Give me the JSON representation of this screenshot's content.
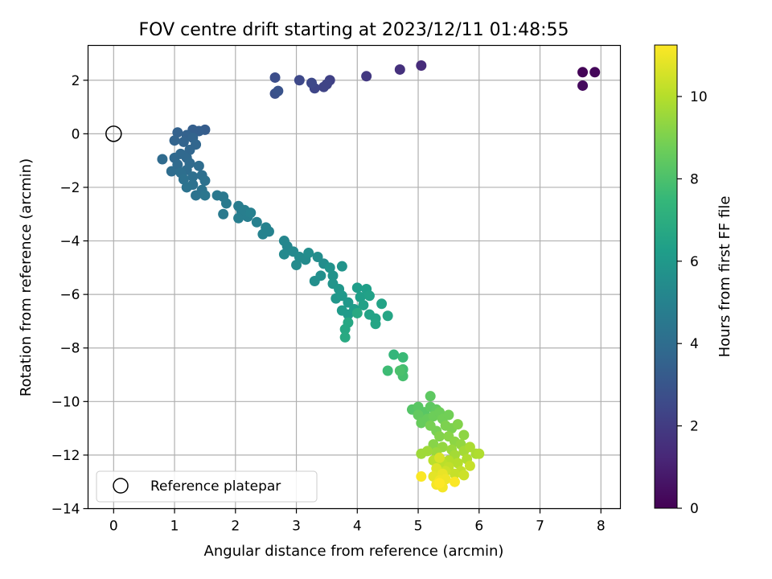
{
  "chart_data": {
    "type": "scatter",
    "title": "FOV centre drift starting at 2023/12/11 01:48:55",
    "xlabel": "Angular distance from reference (arcmin)",
    "ylabel": "Rotation from reference (arcmin)",
    "xlim": [
      -0.42,
      8.32
    ],
    "ylim": [
      -14.0,
      3.3
    ],
    "xticks": [
      0,
      1,
      2,
      3,
      4,
      5,
      6,
      7,
      8
    ],
    "yticks": [
      -14,
      -12,
      -10,
      -8,
      -6,
      -4,
      -2,
      0,
      2
    ],
    "grid": true,
    "colormap": "viridis",
    "colorbar": {
      "label": "Hours from first FF file",
      "range": [
        0,
        11.25
      ],
      "ticks": [
        0,
        2,
        4,
        6,
        8,
        10
      ]
    },
    "legend": {
      "location": "lower-left",
      "entries": [
        "Reference platepar"
      ]
    },
    "reference_point": {
      "x": 0,
      "y": 0
    },
    "points": [
      {
        "x": 7.7,
        "y": 2.3,
        "h": 0.1
      },
      {
        "x": 7.9,
        "y": 2.3,
        "h": 0.2
      },
      {
        "x": 7.7,
        "y": 1.8,
        "h": 0.3
      },
      {
        "x": 5.05,
        "y": 2.55,
        "h": 1.4
      },
      {
        "x": 4.7,
        "y": 2.4,
        "h": 1.6
      },
      {
        "x": 4.15,
        "y": 2.15,
        "h": 1.9
      },
      {
        "x": 3.55,
        "y": 2.0,
        "h": 2.2
      },
      {
        "x": 3.5,
        "y": 1.85,
        "h": 2.3
      },
      {
        "x": 3.45,
        "y": 1.75,
        "h": 2.3
      },
      {
        "x": 3.3,
        "y": 1.7,
        "h": 2.4
      },
      {
        "x": 3.25,
        "y": 1.9,
        "h": 2.5
      },
      {
        "x": 3.05,
        "y": 2.0,
        "h": 2.5
      },
      {
        "x": 2.65,
        "y": 2.1,
        "h": 2.7
      },
      {
        "x": 2.65,
        "y": 1.5,
        "h": 2.8
      },
      {
        "x": 2.7,
        "y": 1.6,
        "h": 2.9
      },
      {
        "x": 1.5,
        "y": 0.15,
        "h": 3.3
      },
      {
        "x": 1.4,
        "y": 0.1,
        "h": 3.4
      },
      {
        "x": 1.3,
        "y": 0.15,
        "h": 3.4
      },
      {
        "x": 1.2,
        "y": -0.05,
        "h": 3.5
      },
      {
        "x": 1.05,
        "y": 0.05,
        "h": 3.5
      },
      {
        "x": 1.0,
        "y": -0.25,
        "h": 3.6
      },
      {
        "x": 1.15,
        "y": -0.3,
        "h": 3.6
      },
      {
        "x": 1.3,
        "y": -0.15,
        "h": 3.6
      },
      {
        "x": 1.35,
        "y": -0.4,
        "h": 3.7
      },
      {
        "x": 1.25,
        "y": -0.6,
        "h": 3.7
      },
      {
        "x": 1.1,
        "y": -0.75,
        "h": 3.8
      },
      {
        "x": 1.2,
        "y": -0.9,
        "h": 3.8
      },
      {
        "x": 1.0,
        "y": -0.9,
        "h": 3.8
      },
      {
        "x": 0.8,
        "y": -0.95,
        "h": 3.9
      },
      {
        "x": 1.05,
        "y": -1.15,
        "h": 3.9
      },
      {
        "x": 1.25,
        "y": -1.1,
        "h": 3.9
      },
      {
        "x": 1.4,
        "y": -1.2,
        "h": 4.0
      },
      {
        "x": 1.2,
        "y": -1.35,
        "h": 4.0
      },
      {
        "x": 0.95,
        "y": -1.4,
        "h": 4.0
      },
      {
        "x": 1.1,
        "y": -1.45,
        "h": 4.1
      },
      {
        "x": 1.3,
        "y": -1.6,
        "h": 4.1
      },
      {
        "x": 1.45,
        "y": -1.55,
        "h": 4.1
      },
      {
        "x": 1.15,
        "y": -1.7,
        "h": 4.2
      },
      {
        "x": 1.3,
        "y": -1.9,
        "h": 4.2
      },
      {
        "x": 1.5,
        "y": -1.75,
        "h": 4.2
      },
      {
        "x": 1.2,
        "y": -2.0,
        "h": 4.3
      },
      {
        "x": 1.35,
        "y": -2.3,
        "h": 4.3
      },
      {
        "x": 1.45,
        "y": -2.1,
        "h": 4.3
      },
      {
        "x": 1.5,
        "y": -2.3,
        "h": 4.4
      },
      {
        "x": 1.7,
        "y": -2.3,
        "h": 4.5
      },
      {
        "x": 1.8,
        "y": -2.35,
        "h": 4.5
      },
      {
        "x": 1.85,
        "y": -2.6,
        "h": 4.6
      },
      {
        "x": 1.8,
        "y": -3.0,
        "h": 4.6
      },
      {
        "x": 2.05,
        "y": -2.7,
        "h": 4.7
      },
      {
        "x": 2.1,
        "y": -2.9,
        "h": 4.7
      },
      {
        "x": 2.05,
        "y": -3.15,
        "h": 4.8
      },
      {
        "x": 2.2,
        "y": -3.1,
        "h": 4.8
      },
      {
        "x": 2.15,
        "y": -2.85,
        "h": 4.8
      },
      {
        "x": 2.25,
        "y": -2.95,
        "h": 4.9
      },
      {
        "x": 2.35,
        "y": -3.3,
        "h": 4.9
      },
      {
        "x": 2.5,
        "y": -3.5,
        "h": 5.0
      },
      {
        "x": 2.45,
        "y": -3.75,
        "h": 5.0
      },
      {
        "x": 2.55,
        "y": -3.65,
        "h": 5.0
      },
      {
        "x": 2.8,
        "y": -4.0,
        "h": 5.2
      },
      {
        "x": 2.85,
        "y": -4.2,
        "h": 5.2
      },
      {
        "x": 2.8,
        "y": -4.5,
        "h": 5.3
      },
      {
        "x": 2.95,
        "y": -4.4,
        "h": 5.3
      },
      {
        "x": 3.05,
        "y": -4.6,
        "h": 5.4
      },
      {
        "x": 3.0,
        "y": -4.9,
        "h": 5.4
      },
      {
        "x": 3.15,
        "y": -4.7,
        "h": 5.4
      },
      {
        "x": 3.2,
        "y": -4.45,
        "h": 5.5
      },
      {
        "x": 3.35,
        "y": -4.6,
        "h": 5.5
      },
      {
        "x": 3.45,
        "y": -4.85,
        "h": 5.5
      },
      {
        "x": 3.3,
        "y": -5.5,
        "h": 5.6
      },
      {
        "x": 3.4,
        "y": -5.3,
        "h": 5.6
      },
      {
        "x": 3.55,
        "y": -5.0,
        "h": 5.7
      },
      {
        "x": 3.6,
        "y": -5.3,
        "h": 5.7
      },
      {
        "x": 3.75,
        "y": -4.95,
        "h": 5.8
      },
      {
        "x": 3.6,
        "y": -5.6,
        "h": 5.8
      },
      {
        "x": 3.7,
        "y": -5.8,
        "h": 5.9
      },
      {
        "x": 3.65,
        "y": -6.15,
        "h": 5.9
      },
      {
        "x": 3.75,
        "y": -6.05,
        "h": 6.0
      },
      {
        "x": 3.85,
        "y": -6.3,
        "h": 6.0
      },
      {
        "x": 3.75,
        "y": -6.6,
        "h": 6.1
      },
      {
        "x": 3.85,
        "y": -6.75,
        "h": 6.1
      },
      {
        "x": 3.95,
        "y": -6.55,
        "h": 6.2
      },
      {
        "x": 4.0,
        "y": -5.75,
        "h": 6.2
      },
      {
        "x": 4.05,
        "y": -6.1,
        "h": 6.3
      },
      {
        "x": 4.15,
        "y": -5.8,
        "h": 6.3
      },
      {
        "x": 4.2,
        "y": -6.05,
        "h": 6.4
      },
      {
        "x": 4.1,
        "y": -6.4,
        "h": 6.4
      },
      {
        "x": 4.2,
        "y": -6.75,
        "h": 6.5
      },
      {
        "x": 4.3,
        "y": -6.9,
        "h": 6.5
      },
      {
        "x": 4.4,
        "y": -6.35,
        "h": 6.5
      },
      {
        "x": 4.3,
        "y": -7.1,
        "h": 6.6
      },
      {
        "x": 4.5,
        "y": -6.8,
        "h": 6.6
      },
      {
        "x": 3.85,
        "y": -7.05,
        "h": 6.7
      },
      {
        "x": 3.8,
        "y": -7.3,
        "h": 6.7
      },
      {
        "x": 3.8,
        "y": -7.6,
        "h": 6.8
      },
      {
        "x": 4.0,
        "y": -6.7,
        "h": 6.8
      },
      {
        "x": 4.6,
        "y": -8.25,
        "h": 7.4
      },
      {
        "x": 4.75,
        "y": -8.35,
        "h": 7.6
      },
      {
        "x": 4.75,
        "y": -8.8,
        "h": 7.8
      },
      {
        "x": 4.75,
        "y": -9.05,
        "h": 7.9
      },
      {
        "x": 4.5,
        "y": -8.85,
        "h": 7.7
      },
      {
        "x": 4.7,
        "y": -8.85,
        "h": 8.0
      },
      {
        "x": 4.9,
        "y": -10.3,
        "h": 8.2
      },
      {
        "x": 5.0,
        "y": -10.2,
        "h": 8.3
      },
      {
        "x": 5.1,
        "y": -10.4,
        "h": 8.3
      },
      {
        "x": 5.2,
        "y": -9.8,
        "h": 8.4
      },
      {
        "x": 5.2,
        "y": -10.2,
        "h": 8.4
      },
      {
        "x": 5.3,
        "y": -10.3,
        "h": 8.5
      },
      {
        "x": 5.0,
        "y": -10.5,
        "h": 8.5
      },
      {
        "x": 5.05,
        "y": -10.8,
        "h": 8.6
      },
      {
        "x": 5.15,
        "y": -10.65,
        "h": 8.6
      },
      {
        "x": 5.25,
        "y": -10.55,
        "h": 8.7
      },
      {
        "x": 5.35,
        "y": -10.4,
        "h": 8.7
      },
      {
        "x": 5.4,
        "y": -10.65,
        "h": 8.8
      },
      {
        "x": 5.5,
        "y": -10.5,
        "h": 8.8
      },
      {
        "x": 5.2,
        "y": -10.9,
        "h": 8.9
      },
      {
        "x": 5.3,
        "y": -11.1,
        "h": 8.9
      },
      {
        "x": 5.45,
        "y": -10.9,
        "h": 9.0
      },
      {
        "x": 5.55,
        "y": -11.0,
        "h": 9.0
      },
      {
        "x": 5.65,
        "y": -10.85,
        "h": 9.1
      },
      {
        "x": 5.35,
        "y": -11.3,
        "h": 9.1
      },
      {
        "x": 5.25,
        "y": -11.6,
        "h": 9.2
      },
      {
        "x": 5.5,
        "y": -11.3,
        "h": 9.2
      },
      {
        "x": 5.6,
        "y": -11.5,
        "h": 9.3
      },
      {
        "x": 5.75,
        "y": -11.25,
        "h": 9.3
      },
      {
        "x": 5.7,
        "y": -11.6,
        "h": 9.4
      },
      {
        "x": 5.4,
        "y": -11.7,
        "h": 9.4
      },
      {
        "x": 5.55,
        "y": -11.8,
        "h": 9.5
      },
      {
        "x": 5.3,
        "y": -11.9,
        "h": 9.5
      },
      {
        "x": 5.15,
        "y": -11.85,
        "h": 9.6
      },
      {
        "x": 5.05,
        "y": -11.95,
        "h": 9.6
      },
      {
        "x": 5.6,
        "y": -12.0,
        "h": 9.7
      },
      {
        "x": 5.75,
        "y": -11.85,
        "h": 9.7
      },
      {
        "x": 5.85,
        "y": -11.7,
        "h": 9.8
      },
      {
        "x": 5.95,
        "y": -11.95,
        "h": 9.8
      },
      {
        "x": 6.0,
        "y": -11.95,
        "h": 9.9
      },
      {
        "x": 5.8,
        "y": -12.15,
        "h": 9.9
      },
      {
        "x": 5.65,
        "y": -12.3,
        "h": 10.0
      },
      {
        "x": 5.5,
        "y": -12.2,
        "h": 10.0
      },
      {
        "x": 5.4,
        "y": -12.3,
        "h": 10.1
      },
      {
        "x": 5.25,
        "y": -12.2,
        "h": 10.1
      },
      {
        "x": 5.5,
        "y": -12.45,
        "h": 10.2
      },
      {
        "x": 5.7,
        "y": -12.6,
        "h": 10.2
      },
      {
        "x": 5.85,
        "y": -12.4,
        "h": 10.3
      },
      {
        "x": 5.6,
        "y": -12.7,
        "h": 10.3
      },
      {
        "x": 5.45,
        "y": -12.6,
        "h": 10.4
      },
      {
        "x": 5.75,
        "y": -12.75,
        "h": 10.4
      },
      {
        "x": 5.35,
        "y": -12.1,
        "h": 10.6
      },
      {
        "x": 5.3,
        "y": -12.5,
        "h": 10.7
      },
      {
        "x": 5.25,
        "y": -12.8,
        "h": 10.8
      },
      {
        "x": 5.4,
        "y": -12.7,
        "h": 10.9
      },
      {
        "x": 5.35,
        "y": -12.95,
        "h": 11.0
      },
      {
        "x": 5.45,
        "y": -12.9,
        "h": 11.0
      },
      {
        "x": 5.3,
        "y": -13.1,
        "h": 11.1
      },
      {
        "x": 5.4,
        "y": -13.2,
        "h": 11.1
      },
      {
        "x": 5.6,
        "y": -13.0,
        "h": 11.2
      },
      {
        "x": 5.05,
        "y": -12.8,
        "h": 11.2
      },
      {
        "x": 5.35,
        "y": -13.05,
        "h": 11.25
      }
    ]
  }
}
